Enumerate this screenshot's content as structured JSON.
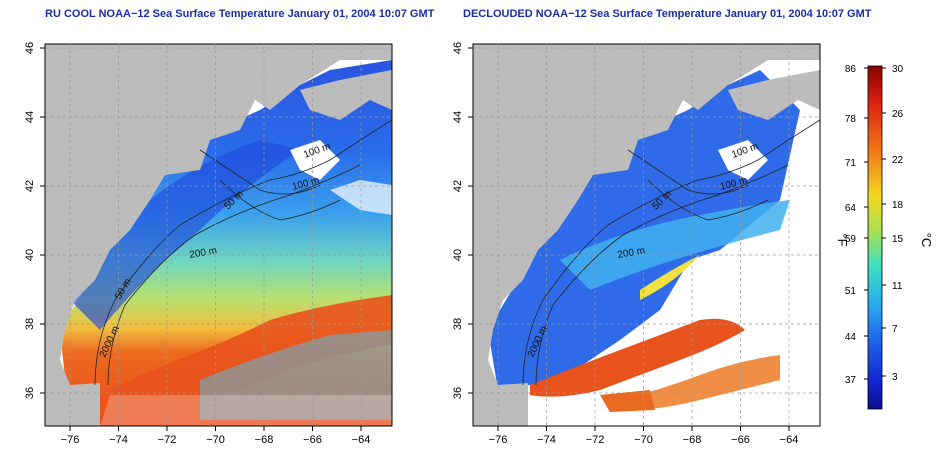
{
  "left_panel": {
    "title": "RU COOL NOAA−12 Sea Surface Temperature January 01, 2004 10:07 GMT"
  },
  "right_panel": {
    "title": "DECLOUDED NOAA−12 Sea Surface Temperature January 01, 2004 10:07 GMT"
  },
  "axes": {
    "x_ticks": [
      "−76",
      "−74",
      "−72",
      "−70",
      "−68",
      "−66",
      "−64"
    ],
    "y_ticks": [
      "36",
      "38",
      "40",
      "42",
      "44",
      "46"
    ]
  },
  "contour_labels": {
    "left": [
      "100 m",
      "100 m",
      "50 m",
      "200 m",
      "50 m",
      "2000 m"
    ],
    "right": [
      "100 m",
      "100 m",
      "50 m",
      "200 m",
      "2000 m"
    ]
  },
  "colorbar": {
    "unit_f": "°F",
    "unit_c": "°C",
    "f_ticks": [
      "86",
      "78",
      "71",
      "64",
      "59",
      "51",
      "44",
      "37"
    ],
    "c_ticks": [
      "30",
      "26",
      "22",
      "18",
      "15",
      "11",
      "7",
      "3"
    ]
  },
  "colors": {
    "land": "#bcbcbc",
    "title": "#1a2ea8",
    "cold": "#1b3fd8",
    "warm": "#e8501a"
  }
}
